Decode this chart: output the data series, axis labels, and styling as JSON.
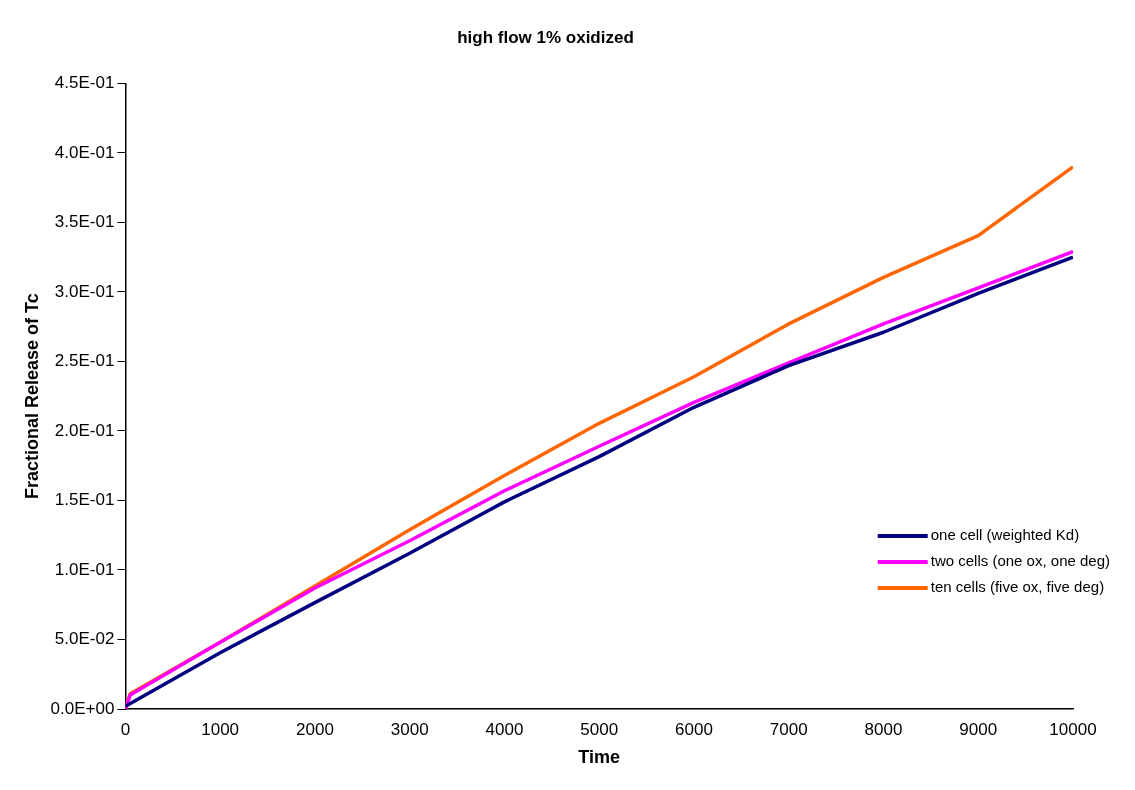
{
  "chart_data": {
    "type": "line",
    "title": "high flow 1% oxidized",
    "xlabel": "Time",
    "ylabel": "Fractional Release of Tc",
    "xlim": [
      0,
      10000
    ],
    "xticks": [
      0,
      1000,
      2000,
      3000,
      4000,
      5000,
      6000,
      7000,
      8000,
      9000,
      10000
    ],
    "ylim": [
      0,
      0.45
    ],
    "yticks": [
      {
        "value": 0,
        "label": "0.0E+00"
      },
      {
        "value": 0.05,
        "label": "5.0E-02"
      },
      {
        "value": 0.1,
        "label": "1.0E-01"
      },
      {
        "value": 0.15,
        "label": "1.5E-01"
      },
      {
        "value": 0.2,
        "label": "2.0E-01"
      },
      {
        "value": 0.25,
        "label": "2.5E-01"
      },
      {
        "value": 0.3,
        "label": "3.0E-01"
      },
      {
        "value": 0.35,
        "label": "3.5E-01"
      },
      {
        "value": 0.4,
        "label": "4.0E-01"
      },
      {
        "value": 0.45,
        "label": "4.5E-01"
      }
    ],
    "grid": false,
    "legend": "bottom right",
    "marker": "none",
    "line_style": "solid",
    "series": [
      {
        "name": "one cell (weighted Kd)",
        "color": "#000080",
        "x": [
          0,
          1000,
          2000,
          3000,
          4000,
          5000,
          6000,
          7000,
          8000,
          9000,
          10000
        ],
        "values": [
          0.002,
          0.0405,
          0.0765,
          0.112,
          0.149,
          0.1815,
          0.217,
          0.247,
          0.271,
          0.299,
          0.325
        ]
      },
      {
        "name": "two cells (one ox, one deg)",
        "color": "#ff00ff",
        "x": [
          0,
          50,
          1000,
          2000,
          3000,
          4000,
          5000,
          6000,
          7000,
          8000,
          9000,
          10000
        ],
        "values": [
          0,
          0.01,
          0.048,
          0.087,
          0.121,
          0.157,
          0.189,
          0.2205,
          0.249,
          0.277,
          0.303,
          0.329
        ]
      },
      {
        "name": "ten cells (five ox, five deg)",
        "color": "#ff6600",
        "x": [
          0,
          50,
          1000,
          2000,
          3000,
          4000,
          5000,
          6000,
          7000,
          8000,
          9000,
          10000
        ],
        "values": [
          0,
          0.011,
          0.048,
          0.0885,
          0.129,
          0.168,
          0.2055,
          0.239,
          0.277,
          0.3105,
          0.3405,
          0.39
        ]
      }
    ]
  }
}
